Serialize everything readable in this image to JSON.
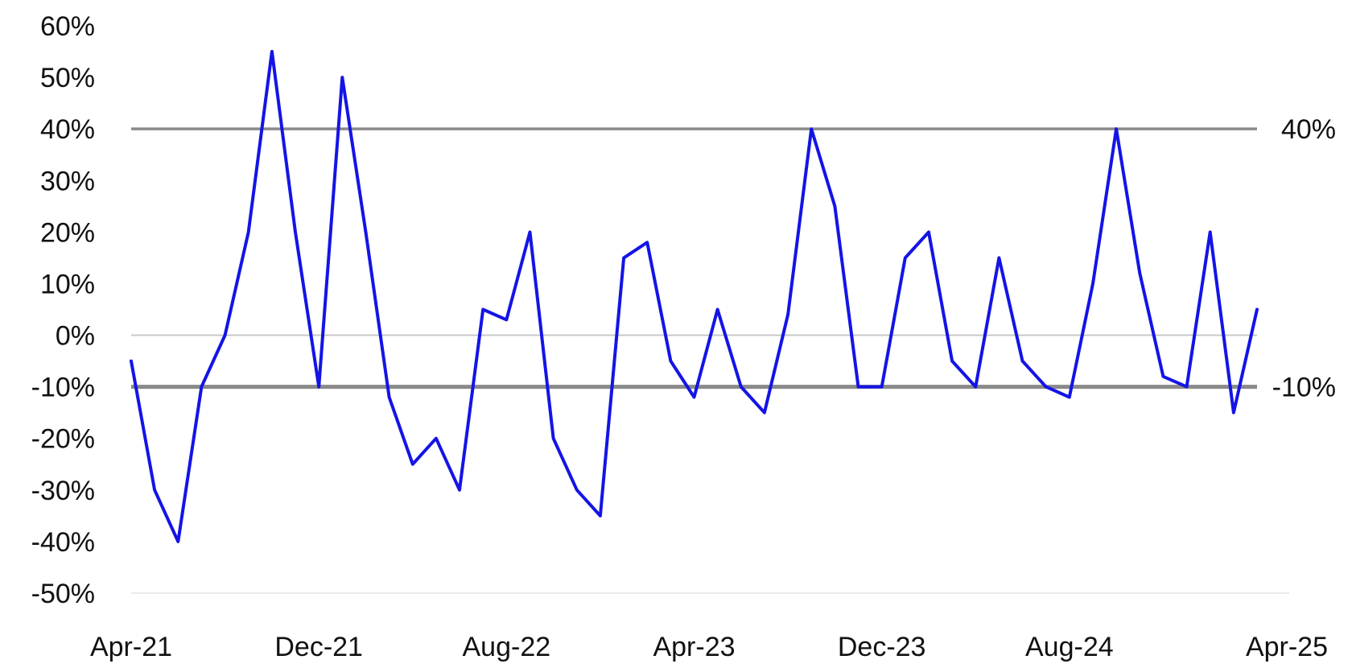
{
  "chart_data": {
    "type": "line",
    "title": "",
    "xlabel": "",
    "ylabel": "",
    "ylim": [
      -50,
      60
    ],
    "y_tick_labels": [
      "60%",
      "50%",
      "40%",
      "30%",
      "20%",
      "10%",
      "0%",
      "-10%",
      "-20%",
      "-30%",
      "-40%",
      "-50%"
    ],
    "y_tick_values": [
      60,
      50,
      40,
      30,
      20,
      10,
      0,
      -10,
      -20,
      -30,
      -40,
      -50
    ],
    "x_tick_labels": [
      "Apr-21",
      "Dec-21",
      "Aug-22",
      "Apr-23",
      "Dec-23",
      "Aug-24",
      "Apr-25"
    ],
    "x_tick_dates": [
      "2021-04",
      "2021-12",
      "2022-08",
      "2023-04",
      "2023-12",
      "2024-08",
      "2025-04"
    ],
    "grid": false,
    "legend": "none",
    "reference_lines": [
      {
        "value": 40,
        "label": "40%"
      },
      {
        "value": -10,
        "label": "-10%"
      },
      {
        "value": 0,
        "label": ""
      }
    ],
    "series": [
      {
        "color": "#1414e6",
        "x": [
          "2021-04",
          "2021-05",
          "2021-06",
          "2021-07",
          "2021-08",
          "2021-09",
          "2021-10",
          "2021-11",
          "2021-12",
          "2022-01",
          "2022-02",
          "2022-03",
          "2022-04",
          "2022-05",
          "2022-06",
          "2022-07",
          "2022-08",
          "2022-09",
          "2022-10",
          "2022-11",
          "2022-12",
          "2023-01",
          "2023-02",
          "2023-03",
          "2023-04",
          "2023-05",
          "2023-06",
          "2023-07",
          "2023-08",
          "2023-09",
          "2023-10",
          "2023-11",
          "2023-12",
          "2024-01",
          "2024-02",
          "2024-03",
          "2024-04",
          "2024-05",
          "2024-06",
          "2024-07",
          "2024-08",
          "2024-09",
          "2024-10",
          "2024-11",
          "2024-12",
          "2025-01",
          "2025-02",
          "2025-03",
          "2025-04"
        ],
        "values": [
          -5,
          -30,
          -40,
          -10,
          0,
          20,
          55,
          20,
          -10,
          50,
          20,
          -12,
          -25,
          -20,
          -30,
          5,
          3,
          20,
          -20,
          -30,
          -35,
          15,
          18,
          -5,
          -12,
          5,
          -10,
          -15,
          4,
          40,
          25,
          -10,
          -10,
          15,
          20,
          -5,
          -10,
          15,
          -5,
          -10,
          -12,
          10,
          40,
          12,
          -8,
          -10,
          20,
          -15,
          5
        ]
      }
    ]
  }
}
